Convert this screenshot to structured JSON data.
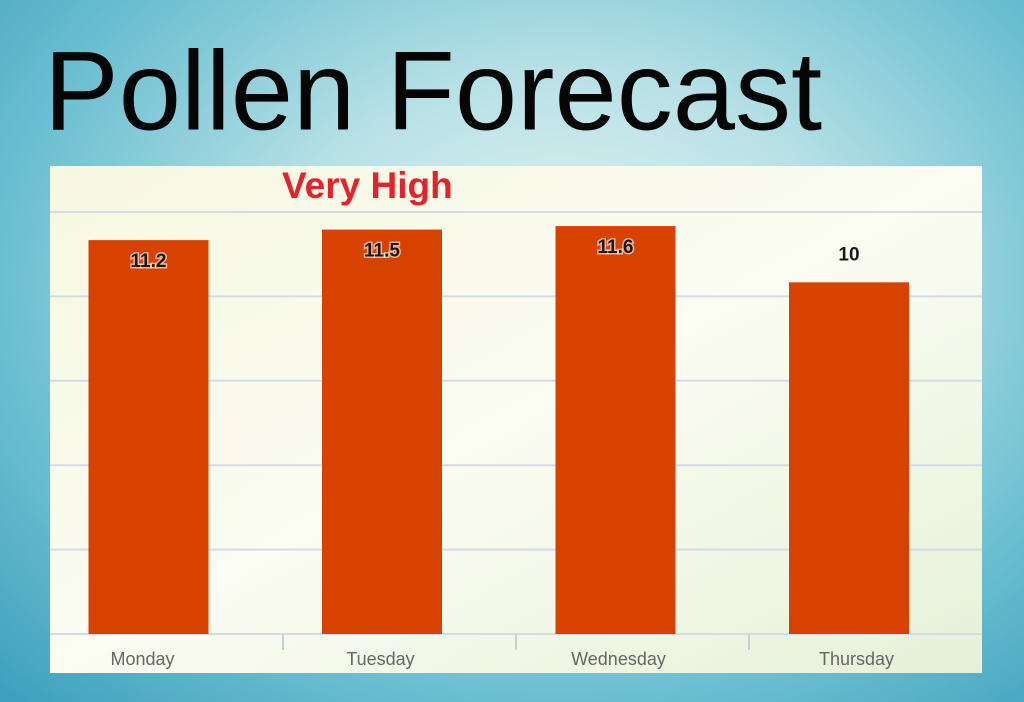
{
  "chart_data": {
    "type": "bar",
    "title": "Pollen Forecast",
    "annotation": "Very High",
    "categories": [
      "Monday",
      "Tuesday",
      "Wednesday",
      "Thursday"
    ],
    "values": [
      11.2,
      11.5,
      11.6,
      10
    ],
    "color": "#d84200",
    "ylim": [
      0,
      12
    ],
    "yticks": [
      0,
      2.4,
      4.8,
      7.2,
      9.6,
      12
    ],
    "grid": true
  }
}
